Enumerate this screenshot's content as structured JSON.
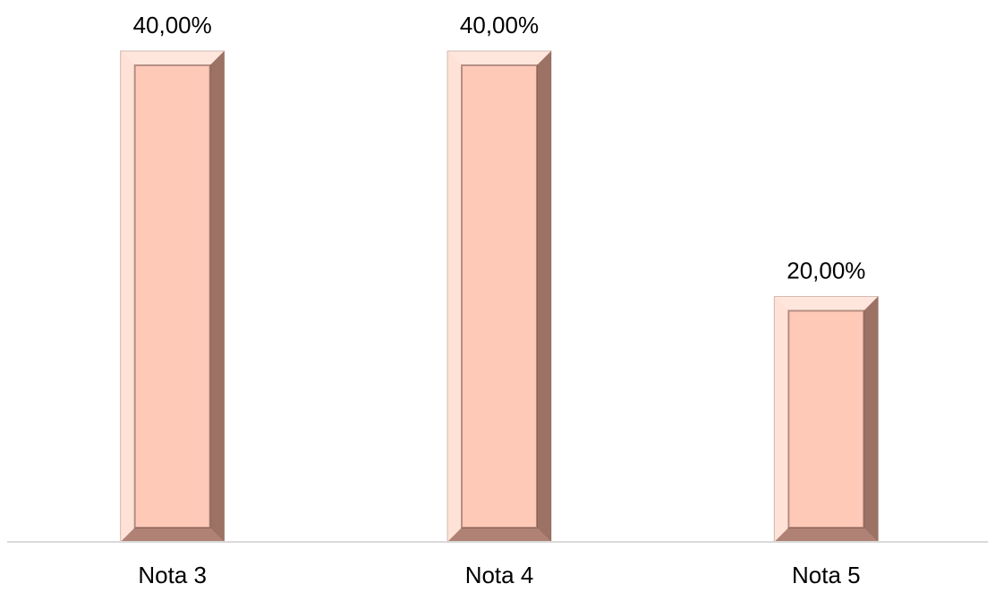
{
  "chart_data": {
    "type": "bar",
    "categories": [
      "Nota 3",
      "Nota 4",
      "Nota 5"
    ],
    "values": [
      40,
      40,
      20
    ],
    "data_labels": [
      "40,00%",
      "40,00%",
      "20,00%"
    ],
    "title": "",
    "xlabel": "",
    "ylabel": "",
    "ylim": [
      0,
      40
    ],
    "grid": false,
    "legend": "none",
    "colors": {
      "bar_fill": "#FFC9B8",
      "bar_bevel_light": "#FFE6DC",
      "bar_bevel_dark": "#7A5448",
      "axis": "#D9D9D9"
    }
  }
}
